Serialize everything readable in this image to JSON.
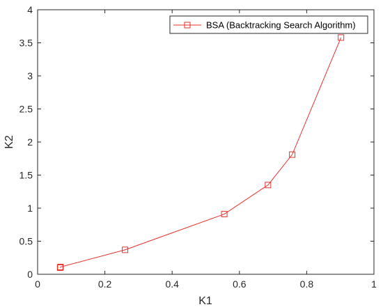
{
  "chart_data": {
    "type": "line",
    "title": "",
    "xlabel": "K1",
    "ylabel": "K2",
    "xlim": [
      0,
      1
    ],
    "ylim": [
      0,
      4
    ],
    "x_ticks": [
      "0",
      "0.2",
      "0.4",
      "0.6",
      "0.8",
      "1"
    ],
    "y_ticks": [
      "0",
      "0.5",
      "1",
      "1.5",
      "2",
      "2.5",
      "3",
      "3.5",
      "4"
    ],
    "grid": false,
    "box": true,
    "legend_position": "top-right",
    "series": [
      {
        "name": "BSA (Backtracking Search Algorithm)",
        "color": "#e8302a",
        "marker": "square",
        "points": [
          {
            "x": 0.067,
            "y": 0.1
          },
          {
            "x": 0.068,
            "y": 0.11
          },
          {
            "x": 0.26,
            "y": 0.37
          },
          {
            "x": 0.555,
            "y": 0.91
          },
          {
            "x": 0.685,
            "y": 1.35
          },
          {
            "x": 0.757,
            "y": 1.81
          },
          {
            "x": 0.902,
            "y": 3.58
          }
        ]
      }
    ]
  }
}
